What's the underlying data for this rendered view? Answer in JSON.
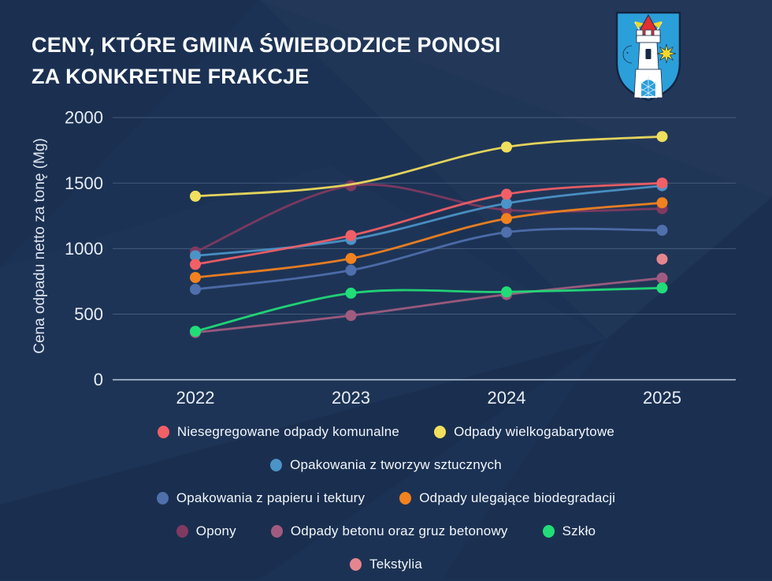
{
  "title": {
    "line1": "CENY, KTÓRE GMINA ŚWIEBODZICE PONOSI",
    "line2": "ZA KONKRETNE FRAKCJE"
  },
  "colors": {
    "background": "#1c3254",
    "title_text": "#fafcfe",
    "axis_text": "#e8eef7",
    "gridline": "rgba(164,184,212,0.30)",
    "axis_line": "rgba(205,218,236,0.85)",
    "crest_shield": "#2b9fd9",
    "crest_roof": "#e22f2f",
    "crest_star": "#f2d829"
  },
  "chart_data": {
    "type": "line",
    "x_labels": [
      "2022",
      "2023",
      "2024",
      "2025"
    ],
    "ylabel": "Cena odpadu netto za tonę (Mg)",
    "ylim": [
      0,
      2000
    ],
    "yticks": [
      0,
      500,
      1000,
      1500,
      2000
    ],
    "grid": true,
    "legend_position": "bottom",
    "series": [
      {
        "name": "Niesegregowane odpady komunalne",
        "color": "#f25f66",
        "values": [
          880,
          1100,
          1415,
          1500
        ]
      },
      {
        "name": "Odpady wielkogabarytowe",
        "color": "#f1df5e",
        "values": [
          1400,
          1490,
          1775,
          1855
        ],
        "marker_skip": [
          1
        ]
      },
      {
        "name": "Opakowania z tworzyw sztucznych",
        "color": "#4b94c8",
        "values": [
          945,
          1070,
          1345,
          1480
        ]
      },
      {
        "name": "Opakowania z papieru i tektury",
        "color": "#4f6fad",
        "values": [
          690,
          835,
          1125,
          1140
        ]
      },
      {
        "name": "Odpady ulegające biodegradacji",
        "color": "#f2821f",
        "values": [
          780,
          925,
          1230,
          1350
        ]
      },
      {
        "name": "Opony",
        "color": "#803a61",
        "values": [
          975,
          1480,
          1295,
          1305
        ]
      },
      {
        "name": "Odpady betonu oraz gruz betonowy",
        "color": "#a05c80",
        "values": [
          360,
          490,
          650,
          775
        ]
      },
      {
        "name": "Szkło",
        "color": "#21dd78",
        "values": [
          370,
          660,
          670,
          700
        ]
      },
      {
        "name": "Tekstylia",
        "color": "#e5868f",
        "values": [
          null,
          null,
          null,
          920
        ]
      }
    ],
    "legend_rows": [
      [
        0,
        1
      ],
      [
        2
      ],
      [
        3,
        4
      ],
      [
        5,
        6,
        7
      ],
      [
        8
      ]
    ],
    "draw_order": [
      8,
      6,
      7,
      5,
      4,
      3,
      2,
      1,
      0
    ]
  }
}
